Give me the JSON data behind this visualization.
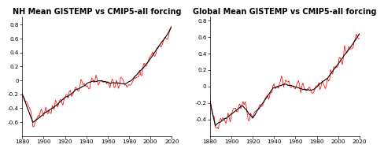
{
  "title_left": "NH Mean GISTEMP vs CMIP5-all forcing",
  "title_right": "Global Mean GISTEMP vs CMIP5-all forcing",
  "xlim": [
    1880,
    2020
  ],
  "ylim_left": [
    -0.8,
    0.92
  ],
  "ylim_right": [
    -0.6,
    0.85
  ],
  "xticks": [
    1880,
    1900,
    1920,
    1940,
    1960,
    1980,
    2000,
    2020
  ],
  "yticks_left": [
    -0.6,
    -0.4,
    -0.2,
    0.0,
    0.2,
    0.4,
    0.6,
    0.8
  ],
  "yticks_right": [
    -0.4,
    -0.2,
    0.0,
    0.2,
    0.4,
    0.6,
    0.8
  ],
  "black_lw": 0.8,
  "red_lw": 0.55,
  "background": "#ffffff",
  "title_fontsize": 7.0
}
